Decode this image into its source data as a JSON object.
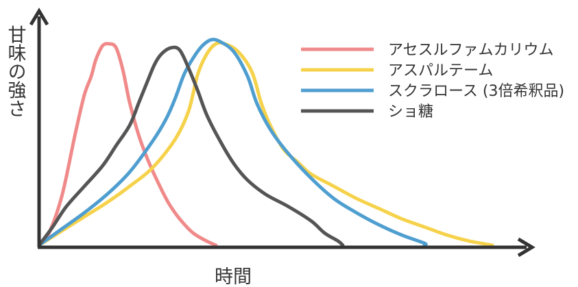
{
  "chart_data": {
    "type": "line",
    "title": "",
    "xlabel": "時間",
    "ylabel": "甘味の強さ",
    "xlim": [
      0,
      100
    ],
    "ylim": [
      0,
      100
    ],
    "grid": false,
    "legend_position": "top-right",
    "series": [
      {
        "name": "アセスルファムカリウム",
        "color": "#f08a8a",
        "points": [
          [
            0,
            0
          ],
          [
            2,
            5
          ],
          [
            5,
            24
          ],
          [
            8,
            55
          ],
          [
            10,
            74
          ],
          [
            11.5,
            83
          ],
          [
            12.5,
            91
          ],
          [
            14,
            98
          ],
          [
            15.5,
            99
          ],
          [
            17,
            97
          ],
          [
            18.5,
            86
          ],
          [
            20,
            70
          ],
          [
            22,
            54
          ],
          [
            24,
            42
          ],
          [
            26,
            32
          ],
          [
            28.5,
            21
          ],
          [
            31,
            13
          ],
          [
            34,
            6
          ],
          [
            37,
            2
          ],
          [
            39,
            0
          ]
        ]
      },
      {
        "name": "アスパルテーム",
        "color": "#f6d24b",
        "points": [
          [
            0,
            0
          ],
          [
            5,
            7
          ],
          [
            10,
            14
          ],
          [
            15,
            21
          ],
          [
            20,
            29
          ],
          [
            25,
            38
          ],
          [
            30,
            52
          ],
          [
            33,
            66
          ],
          [
            35,
            84
          ],
          [
            37,
            94
          ],
          [
            39,
            99
          ],
          [
            41,
            99
          ],
          [
            44,
            95
          ],
          [
            47,
            85
          ],
          [
            49,
            70
          ],
          [
            51,
            59
          ],
          [
            54,
            47
          ],
          [
            57,
            41
          ],
          [
            60,
            35
          ],
          [
            65,
            29
          ],
          [
            70,
            23
          ],
          [
            75,
            18
          ],
          [
            80,
            13
          ],
          [
            85,
            9
          ],
          [
            90,
            5
          ],
          [
            95,
            2
          ],
          [
            100,
            0
          ]
        ]
      },
      {
        "name": "スクラロース (3倍希釈品)",
        "color": "#4f9ed0",
        "points": [
          [
            0,
            0
          ],
          [
            5,
            8
          ],
          [
            10,
            16
          ],
          [
            15,
            25
          ],
          [
            20,
            36
          ],
          [
            25,
            51
          ],
          [
            28,
            62
          ],
          [
            30,
            72
          ],
          [
            32,
            84
          ],
          [
            34,
            92
          ],
          [
            36,
            98
          ],
          [
            38,
            101
          ],
          [
            40,
            100
          ],
          [
            43,
            95
          ],
          [
            46,
            83
          ],
          [
            48,
            70
          ],
          [
            51,
            57
          ],
          [
            55,
            45
          ],
          [
            60,
            33
          ],
          [
            65,
            23
          ],
          [
            70,
            16
          ],
          [
            75,
            10
          ],
          [
            80,
            5
          ],
          [
            85,
            1
          ],
          [
            85,
            0
          ]
        ]
      },
      {
        "name": "ショ糖",
        "color": "#555555",
        "points": [
          [
            0,
            0
          ],
          [
            3,
            9
          ],
          [
            6,
            19
          ],
          [
            10,
            29
          ],
          [
            14,
            39
          ],
          [
            17,
            49
          ],
          [
            20,
            59
          ],
          [
            22,
            70
          ],
          [
            24,
            81
          ],
          [
            25.5,
            89
          ],
          [
            27,
            94
          ],
          [
            29,
            97
          ],
          [
            31,
            96
          ],
          [
            33,
            87
          ],
          [
            35,
            76
          ],
          [
            37,
            64
          ],
          [
            40,
            51
          ],
          [
            43,
            40
          ],
          [
            46,
            32
          ],
          [
            50,
            25
          ],
          [
            55,
            19
          ],
          [
            60,
            12
          ],
          [
            63,
            6
          ],
          [
            66,
            2
          ],
          [
            67,
            0
          ]
        ]
      }
    ]
  }
}
